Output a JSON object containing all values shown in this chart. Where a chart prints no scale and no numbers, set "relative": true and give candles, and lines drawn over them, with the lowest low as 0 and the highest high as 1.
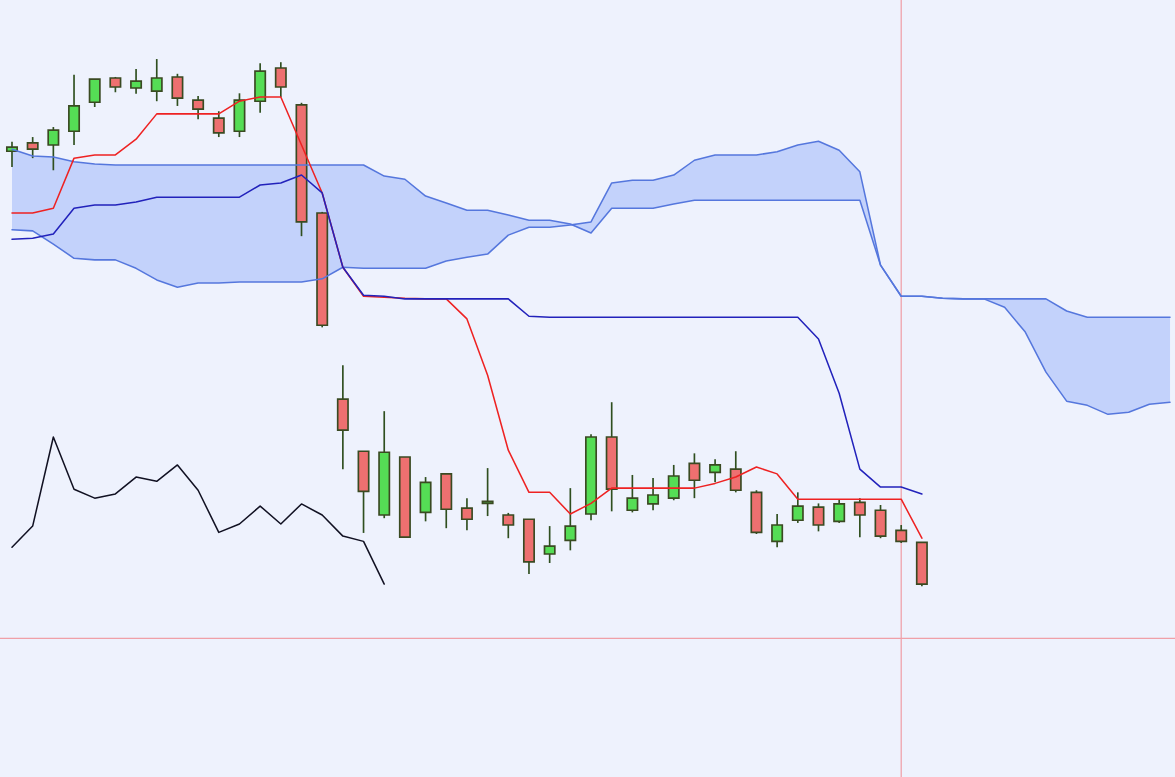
{
  "chart_data": {
    "type": "candlestick",
    "relative": true,
    "categories": [
      null,
      null,
      null,
      null,
      null,
      null,
      null,
      null,
      null,
      null,
      null,
      null,
      null,
      null,
      null,
      null,
      null,
      null,
      null,
      null,
      null,
      null,
      null,
      null,
      null,
      null,
      null,
      null,
      null,
      null,
      null,
      null,
      null,
      null,
      null,
      null,
      null,
      null,
      null,
      null,
      null,
      null,
      null,
      null,
      null,
      null,
      null,
      null,
      null,
      null,
      null,
      null,
      null,
      null,
      null,
      null,
      null
    ],
    "ohlc": [
      [
        0.825,
        0.843,
        0.795,
        0.833
      ],
      [
        0.841,
        0.852,
        0.812,
        0.829
      ],
      [
        0.837,
        0.871,
        0.789,
        0.865
      ],
      [
        0.863,
        0.97,
        0.837,
        0.911
      ],
      [
        0.918,
        0.962,
        0.909,
        0.962
      ],
      [
        0.964,
        0.966,
        0.937,
        0.947
      ],
      [
        0.945,
        0.981,
        0.934,
        0.958
      ],
      [
        0.939,
        1.0,
        0.92,
        0.964
      ],
      [
        0.966,
        0.972,
        0.911,
        0.926
      ],
      [
        0.922,
        0.93,
        0.886,
        0.905
      ],
      [
        0.888,
        0.901,
        0.852,
        0.86
      ],
      [
        0.863,
        0.935,
        0.852,
        0.922
      ],
      [
        0.92,
        0.992,
        0.898,
        0.977
      ],
      [
        0.983,
        0.994,
        0.928,
        0.947
      ],
      [
        0.913,
        0.917,
        0.664,
        0.691
      ],
      [
        0.708,
        0.71,
        0.491,
        0.495
      ],
      [
        0.355,
        0.419,
        0.222,
        0.296
      ],
      [
        0.256,
        0.256,
        0.101,
        0.18
      ],
      [
        0.135,
        0.332,
        0.129,
        0.254
      ],
      [
        0.245,
        0.245,
        0.093,
        0.093
      ],
      [
        0.14,
        0.207,
        0.123,
        0.197
      ],
      [
        0.213,
        0.214,
        0.11,
        0.146
      ],
      [
        0.148,
        0.167,
        0.106,
        0.127
      ],
      [
        0.157,
        0.224,
        0.133,
        0.161
      ],
      [
        0.135,
        0.139,
        0.091,
        0.116
      ],
      [
        0.127,
        0.127,
        0.023,
        0.046
      ],
      [
        0.061,
        0.114,
        0.044,
        0.076
      ],
      [
        0.087,
        0.186,
        0.068,
        0.114
      ],
      [
        0.137,
        0.288,
        0.125,
        0.283
      ],
      [
        0.283,
        0.349,
        0.142,
        0.184
      ],
      [
        0.144,
        0.211,
        0.14,
        0.167
      ],
      [
        0.156,
        0.205,
        0.144,
        0.173
      ],
      [
        0.167,
        0.23,
        0.163,
        0.209
      ],
      [
        0.233,
        0.252,
        0.167,
        0.201
      ],
      [
        0.216,
        0.241,
        0.197,
        0.23
      ],
      [
        0.222,
        0.256,
        0.178,
        0.182
      ],
      [
        0.178,
        0.182,
        0.099,
        0.102
      ],
      [
        0.085,
        0.137,
        0.074,
        0.116
      ],
      [
        0.125,
        0.178,
        0.12,
        0.152
      ],
      [
        0.15,
        0.157,
        0.104,
        0.116
      ],
      [
        0.123,
        0.165,
        0.12,
        0.156
      ],
      [
        0.159,
        0.167,
        0.093,
        0.135
      ],
      [
        0.144,
        0.154,
        0.091,
        0.095
      ],
      [
        0.106,
        0.116,
        0.082,
        0.085
      ],
      [
        0.083,
        0.083,
        0.0,
        0.004
      ],
      null,
      null,
      null,
      null,
      null,
      null,
      null,
      null,
      null,
      null,
      null,
      null
    ],
    "colors": [
      "#55dd55",
      "#ee7070",
      "#55dd55",
      "#55dd55",
      "#55dd55",
      "#ee7070",
      "#55dd55",
      "#55dd55",
      "#ee7070",
      "#ee7070",
      "#ee7070",
      "#55dd55",
      "#55dd55",
      "#ee7070",
      "#ee7070",
      "#ee7070",
      "#ee7070",
      "#ee7070",
      "#55dd55",
      "#ee7070",
      "#55dd55",
      "#ee7070",
      "#ee7070",
      "#55dd55",
      "#ee7070",
      "#ee7070",
      "#55dd55",
      "#55dd55",
      "#55dd55",
      "#ee7070",
      "#55dd55",
      "#55dd55",
      "#55dd55",
      "#ee7070",
      "#55dd55",
      "#ee7070",
      "#ee7070",
      "#55dd55",
      "#55dd55",
      "#ee7070",
      "#55dd55",
      "#ee7070",
      "#ee7070",
      "#ee7070",
      "#ee7070",
      null,
      null,
      null,
      null,
      null,
      null,
      null,
      null,
      null,
      null,
      null,
      null
    ],
    "series": [
      {
        "type": "line",
        "color": "#5577dd",
        "values": [
          0.829,
          0.816,
          0.814,
          0.805,
          0.801,
          0.799,
          0.799,
          0.799,
          0.799,
          0.799,
          0.799,
          0.799,
          0.799,
          0.799,
          0.799,
          0.799,
          0.799,
          0.799,
          0.778,
          0.772,
          0.74,
          0.727,
          0.713,
          0.713,
          0.704,
          0.694,
          0.694,
          0.687,
          0.67,
          0.717,
          0.717,
          0.717,
          0.725,
          0.732,
          0.732,
          0.732,
          0.732,
          0.732,
          0.732,
          0.732,
          0.732,
          0.732,
          0.609,
          0.55,
          0.55,
          0.546,
          0.545,
          0.545,
          0.529,
          0.482,
          0.406,
          0.351,
          0.343,
          0.326,
          0.33,
          0.345,
          0.349
        ],
        "upper": [
          0.829,
          0.816,
          0.814,
          0.805,
          0.801,
          0.799,
          0.799,
          0.799,
          0.799,
          0.799,
          0.799,
          0.799,
          0.799,
          0.799,
          0.799,
          0.799,
          0.799,
          0.799,
          0.778,
          0.772,
          0.74,
          0.727,
          0.713,
          0.713,
          0.704,
          0.694,
          0.694,
          0.687,
          0.691,
          0.765,
          0.77,
          0.77,
          0.78,
          0.808,
          0.818,
          0.818,
          0.818,
          0.824,
          0.837,
          0.844,
          0.827,
          0.786,
          0.609,
          0.55,
          0.55,
          0.546,
          0.545,
          0.545,
          0.545,
          0.545,
          0.545,
          0.522,
          0.51,
          0.51,
          0.51,
          0.51,
          0.51
        ],
        "lower": [
          0.676,
          0.674,
          0.649,
          0.622,
          0.619,
          0.619,
          0.603,
          0.581,
          0.567,
          0.575,
          0.575,
          0.577,
          0.577,
          0.577,
          0.577,
          0.583,
          0.605,
          0.603,
          0.603,
          0.603,
          0.603,
          0.617,
          0.624,
          0.63,
          0.666,
          0.681,
          0.681,
          0.685,
          0.67,
          0.717,
          0.717,
          0.717,
          0.725,
          0.732,
          0.732,
          0.732,
          0.732,
          0.732,
          0.732,
          0.732,
          0.732,
          0.732,
          0.609,
          0.55,
          0.55,
          0.546,
          0.545,
          0.545,
          0.529,
          0.482,
          0.406,
          0.351,
          0.343,
          0.326,
          0.33,
          0.345,
          0.349
        ]
      },
      {
        "type": "line",
        "color": "#5577dd",
        "values": [
          0.676,
          0.674,
          0.649,
          0.622,
          0.619,
          0.619,
          0.603,
          0.581,
          0.567,
          0.575,
          0.575,
          0.577,
          0.577,
          0.577,
          0.577,
          0.583,
          0.605,
          0.603,
          0.603,
          0.603,
          0.603,
          0.617,
          0.624,
          0.63,
          0.666,
          0.681,
          0.681,
          0.685,
          0.691,
          0.765,
          0.77,
          0.77,
          0.78,
          0.808,
          0.818,
          0.818,
          0.818,
          0.824,
          0.837,
          0.844,
          0.827,
          0.786,
          0.609,
          0.55,
          0.55,
          0.546,
          0.545,
          0.545,
          0.545,
          0.545,
          0.545,
          0.522,
          0.51,
          0.51,
          0.51,
          0.51,
          0.51
        ]
      },
      {
        "type": "line",
        "color": "#ee2222",
        "values": [
          0.708,
          0.708,
          0.717,
          0.812,
          0.818,
          0.818,
          0.848,
          0.896,
          0.896,
          0.896,
          0.896,
          0.92,
          0.928,
          0.928,
          0.837,
          0.746,
          0.605,
          0.55,
          0.548,
          0.546,
          0.545,
          0.545,
          0.507,
          0.4,
          0.258,
          0.178,
          0.178,
          0.137,
          0.157,
          0.186,
          0.186,
          0.186,
          0.186,
          0.186,
          0.195,
          0.207,
          0.226,
          0.213,
          0.165,
          0.165,
          0.165,
          0.165,
          0.165,
          0.165,
          0.091,
          null,
          null,
          null,
          null,
          null,
          null,
          null,
          null,
          null,
          null,
          null,
          null
        ]
      },
      {
        "type": "line",
        "color": "#2222bb",
        "values": [
          0.658,
          0.66,
          0.668,
          0.717,
          0.723,
          0.723,
          0.729,
          0.738,
          0.738,
          0.738,
          0.738,
          0.738,
          0.761,
          0.765,
          0.78,
          0.746,
          0.605,
          0.552,
          0.55,
          0.545,
          0.545,
          0.545,
          0.545,
          0.545,
          0.545,
          0.512,
          0.51,
          0.51,
          0.51,
          0.51,
          0.51,
          0.51,
          0.51,
          0.51,
          0.51,
          0.51,
          0.51,
          0.51,
          0.51,
          0.469,
          0.366,
          0.222,
          0.188,
          0.188,
          0.175,
          null,
          null,
          null,
          null,
          null,
          null,
          null,
          null,
          null,
          null,
          null,
          null
        ]
      },
      {
        "type": "line",
        "color": "#111122",
        "values": [
          0.074,
          0.114,
          0.283,
          0.184,
          0.167,
          0.175,
          0.207,
          0.199,
          0.23,
          0.182,
          0.102,
          0.118,
          0.152,
          0.118,
          0.156,
          0.135,
          0.095,
          0.085,
          0.004,
          null,
          null,
          null,
          null,
          null,
          null,
          null,
          null,
          null,
          null,
          null,
          null,
          null,
          null,
          null,
          null,
          null,
          null,
          null,
          null,
          null,
          null,
          null,
          null,
          null,
          null,
          null,
          null,
          null,
          null,
          null,
          null,
          null,
          null,
          null,
          null,
          null,
          null
        ]
      }
    ],
    "ref_lines": [
      {
        "axis": "y",
        "value": -0.099,
        "color": "#f0a0a8"
      }
    ]
  }
}
